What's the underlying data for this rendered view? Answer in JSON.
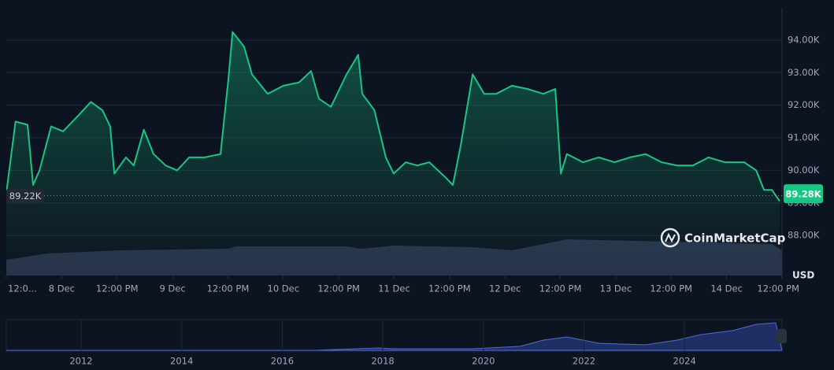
{
  "chart_data": {
    "type": "area",
    "color": "#16c784",
    "x": [
      0,
      2,
      4.6,
      5.8,
      7.2,
      9.7,
      12.3,
      15.7,
      18.3,
      20.8,
      22.5,
      23.4,
      25.9,
      27.6,
      29.8,
      31.9,
      34.5,
      37,
      39.6,
      43,
      46.4,
      48.1,
      49,
      51.5,
      53.2,
      56.6,
      60,
      63.4,
      66,
      67.7,
      70.3,
      73.7,
      76.2,
      77.1,
      79.7,
      82.2,
      83.9,
      86.5,
      89,
      91.6,
      95,
      96.7,
      98.4,
      101,
      103.5,
      106.1,
      109.5,
      112.9,
      116.3,
      118.9,
      120.1,
      121.4,
      124.9,
      128.3,
      131.7,
      135.1,
      138.5,
      141.9,
      145.3,
      148.7,
      152.1,
      155.6,
      159.8,
      162.4,
      164.1,
      165.8,
      167.5
    ],
    "values": [
      89300,
      91500,
      91400,
      89550,
      90000,
      91350,
      91200,
      91700,
      92100,
      91850,
      91350,
      89900,
      90400,
      90150,
      91250,
      90500,
      90150,
      90000,
      90400,
      90400,
      90500,
      92800,
      94250,
      93800,
      92950,
      92350,
      92600,
      92700,
      93050,
      92200,
      91950,
      92950,
      93550,
      92350,
      91850,
      90400,
      89900,
      90250,
      90150,
      90250,
      89800,
      89550,
      90750,
      92950,
      92350,
      92350,
      92600,
      92500,
      92350,
      92500,
      89900,
      90500,
      90250,
      90400,
      90250,
      90400,
      90500,
      90250,
      90150,
      90150,
      90400,
      90250,
      90250,
      90000,
      89400,
      89400,
      89050
    ],
    "xlim": [
      0,
      168
    ],
    "xticks": [
      {
        "value": 0,
        "label": "12:0..."
      },
      {
        "value": 12,
        "label": "8 Dec"
      },
      {
        "value": 24,
        "label": "12:00 PM"
      },
      {
        "value": 36,
        "label": "9 Dec"
      },
      {
        "value": 48,
        "label": "12:00 PM"
      },
      {
        "value": 60,
        "label": "10 Dec"
      },
      {
        "value": 72,
        "label": "12:00 PM"
      },
      {
        "value": 84,
        "label": "11 Dec"
      },
      {
        "value": 96,
        "label": "12:00 PM"
      },
      {
        "value": 108,
        "label": "12 Dec"
      },
      {
        "value": 120,
        "label": "12:00 PM"
      },
      {
        "value": 132,
        "label": "13 Dec"
      },
      {
        "value": 144,
        "label": "12:00 PM"
      },
      {
        "value": 156,
        "label": "14 Dec"
      },
      {
        "value": 168,
        "label": "12:00 PM"
      }
    ],
    "ylim": [
      86770,
      94990
    ],
    "yticks": [
      {
        "value": 88000,
        "label": "88.00K"
      },
      {
        "value": 89000,
        "label": "89.00K"
      },
      {
        "value": 90000,
        "label": "90.00K"
      },
      {
        "value": 91000,
        "label": "91.00K"
      },
      {
        "value": 92000,
        "label": "92.00K"
      },
      {
        "value": 93000,
        "label": "93.00K"
      },
      {
        "value": 94000,
        "label": "94.00K"
      }
    ],
    "grid": true,
    "y_unit": "USD",
    "reference": {
      "value": 89220,
      "label": "89.22K"
    },
    "current": {
      "value": 89280,
      "label": "89.28K"
    },
    "watermark": "CoinMarketCap",
    "navigator_years": [
      "2012",
      "2014",
      "2016",
      "2018",
      "2020",
      "2022",
      "2024"
    ]
  }
}
